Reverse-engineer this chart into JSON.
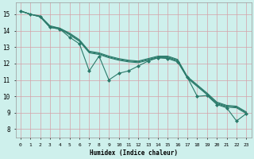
{
  "xlabel": "Humidex (Indice chaleur)",
  "xlim": [
    -0.5,
    23.5
  ],
  "ylim": [
    7.5,
    15.7
  ],
  "xticks": [
    0,
    1,
    2,
    3,
    4,
    5,
    6,
    7,
    8,
    9,
    10,
    11,
    12,
    13,
    14,
    15,
    16,
    17,
    18,
    19,
    20,
    21,
    22,
    23
  ],
  "yticks": [
    8,
    9,
    10,
    11,
    12,
    13,
    14,
    15
  ],
  "bg_color": "#cef0ec",
  "grid_color": "#d4a0a8",
  "line_color": "#2a7a6a",
  "line1_x": [
    0,
    1,
    2,
    3,
    4,
    5,
    6,
    7,
    8,
    9,
    10,
    11,
    12,
    13,
    14,
    15,
    16,
    17,
    18,
    19,
    20,
    21,
    22,
    23
  ],
  "line1_y": [
    15.2,
    15.0,
    14.85,
    14.2,
    14.1,
    13.75,
    13.35,
    12.65,
    12.55,
    12.35,
    12.2,
    12.1,
    12.05,
    12.2,
    12.35,
    12.35,
    12.15,
    11.1,
    10.6,
    10.1,
    9.55,
    9.35,
    9.3,
    8.95
  ],
  "line2_x": [
    0,
    1,
    2,
    3,
    4,
    5,
    6,
    7,
    8,
    9,
    10,
    11,
    12,
    13,
    14,
    15,
    16,
    17,
    18,
    19,
    20,
    21,
    22,
    23
  ],
  "line2_y": [
    15.2,
    15.0,
    14.85,
    14.25,
    14.15,
    13.8,
    13.4,
    12.7,
    12.6,
    12.4,
    12.25,
    12.15,
    12.1,
    12.25,
    12.4,
    12.4,
    12.2,
    11.15,
    10.65,
    10.15,
    9.6,
    9.4,
    9.35,
    9.0
  ],
  "line3_x": [
    0,
    1,
    2,
    3,
    4,
    5,
    6,
    7,
    8,
    9,
    10,
    11,
    12,
    13,
    14,
    15,
    16,
    17,
    18,
    19,
    20,
    21,
    22,
    23
  ],
  "line3_y": [
    15.2,
    15.0,
    14.9,
    14.3,
    14.15,
    13.85,
    13.45,
    12.75,
    12.65,
    12.45,
    12.3,
    12.2,
    12.15,
    12.3,
    12.45,
    12.45,
    12.25,
    11.2,
    10.7,
    10.2,
    9.65,
    9.45,
    9.4,
    9.05
  ],
  "line4_x": [
    0,
    1,
    2,
    3,
    4,
    5,
    6,
    7,
    8,
    9,
    10,
    11,
    12,
    13,
    14,
    15,
    16,
    17,
    18,
    19,
    20,
    21,
    22,
    23
  ],
  "line4_y": [
    15.2,
    15.0,
    14.85,
    14.2,
    14.1,
    13.6,
    13.2,
    11.55,
    12.45,
    11.0,
    11.4,
    11.55,
    11.85,
    12.15,
    12.35,
    12.3,
    12.1,
    11.15,
    10.0,
    10.05,
    9.5,
    9.3,
    8.5,
    8.95
  ]
}
